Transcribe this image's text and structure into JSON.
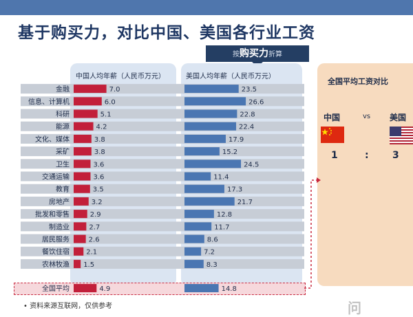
{
  "title": "基于购买力，对比中国、美国各行业工资",
  "ppp_banner": {
    "prefix": "按",
    "highlight": "购买力",
    "suffix": "折算"
  },
  "source_note": "• 资料来源互联网，仅供参考",
  "comparison": {
    "title": "全国平均工资对比",
    "left_label": "中国",
    "vs": "vs",
    "right_label": "美国",
    "ratio_left": "1",
    "ratio_sep": ":",
    "ratio_right": "3"
  },
  "watermark": "问",
  "colors": {
    "cn_bar": "#c21f3a",
    "us_bar": "#4a76b2",
    "stripe": "#c7cdd6",
    "panel": "#dbe5f2",
    "accent": "#c8283f"
  },
  "chart_data": {
    "type": "bar",
    "orientation": "horizontal",
    "categories": [
      "金融",
      "信息、计算机",
      "科研",
      "能源",
      "文化、媒体",
      "采矿",
      "卫生",
      "交通运输",
      "教育",
      "房地产",
      "批发和零售",
      "制造业",
      "居民服务",
      "餐饮住宿",
      "农林牧渔"
    ],
    "series": [
      {
        "name": "中国人均年薪（人民币万元）",
        "values": [
          7.0,
          6.0,
          5.1,
          4.2,
          3.8,
          3.8,
          3.6,
          3.6,
          3.5,
          3.2,
          2.9,
          2.7,
          2.6,
          2.1,
          1.5
        ]
      },
      {
        "name": "美国人均年薪（人民币万元）",
        "values": [
          23.5,
          26.6,
          22.8,
          22.4,
          17.9,
          15.2,
          24.5,
          11.4,
          17.3,
          21.7,
          12.8,
          11.7,
          8.6,
          7.2,
          8.3
        ]
      }
    ],
    "value_labels": {
      "cn": [
        "7.0",
        "6.0",
        "5.1",
        "4.2",
        "3.8",
        "3.8",
        "3.6",
        "3.6",
        "3.5",
        "3.2",
        "2.9",
        "2.7",
        "2.6",
        "2.1",
        "1.5"
      ],
      "us": [
        "23.5",
        "26.6",
        "22.8",
        "22.4",
        "17.9",
        "15.2",
        "24.5",
        "11.4",
        "17.3",
        "21.7",
        "12.8",
        "11.7",
        "8.6",
        "7.2",
        "8.3"
      ]
    },
    "average": {
      "label": "全国平均",
      "cn": 4.9,
      "us": 14.8,
      "cn_label": "4.9",
      "us_label": "14.8"
    }
  }
}
